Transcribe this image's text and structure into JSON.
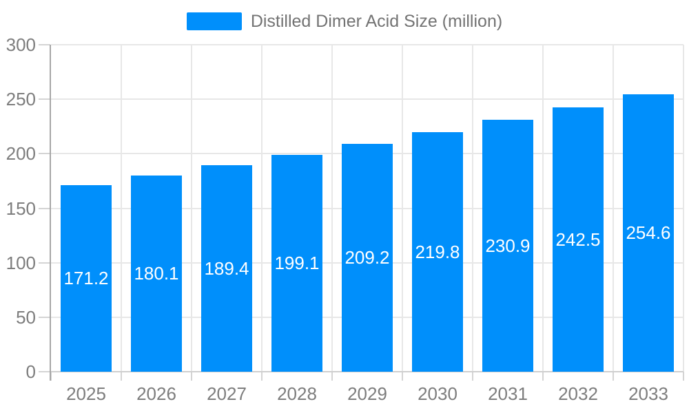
{
  "legend": {
    "label": "Distilled Dimer Acid Size (million)"
  },
  "colors": {
    "bar": "#008FFB",
    "axis_line": "#a6a6a6",
    "x_axis_line": "#cfcfcf",
    "grid_line": "#e7e7e7",
    "tick": "#d4d4d4",
    "axis_label_text": "#7d7d7d",
    "legend_text": "#737373",
    "value_label_text": "#ffffff",
    "background": "#ffffff"
  },
  "chart_data": {
    "type": "bar",
    "title": "Distilled Dimer Acid Size (million)",
    "categories": [
      "2025",
      "2026",
      "2027",
      "2028",
      "2029",
      "2030",
      "2031",
      "2032",
      "2033"
    ],
    "series": [
      {
        "name": "Distilled Dimer Acid Size (million)",
        "values": [
          171.2,
          180.1,
          189.4,
          199.1,
          209.2,
          219.8,
          230.9,
          242.5,
          254.6
        ]
      }
    ],
    "value_labels": [
      171.2,
      180.1,
      189.4,
      199.1,
      209.2,
      219.8,
      230.9,
      242.5,
      254.6
    ],
    "xlabel": "",
    "ylabel": "",
    "ylim": [
      0,
      300
    ],
    "yticks": [
      0,
      50,
      100,
      150,
      200,
      250,
      300
    ],
    "grid": true,
    "legend_position": "top"
  }
}
